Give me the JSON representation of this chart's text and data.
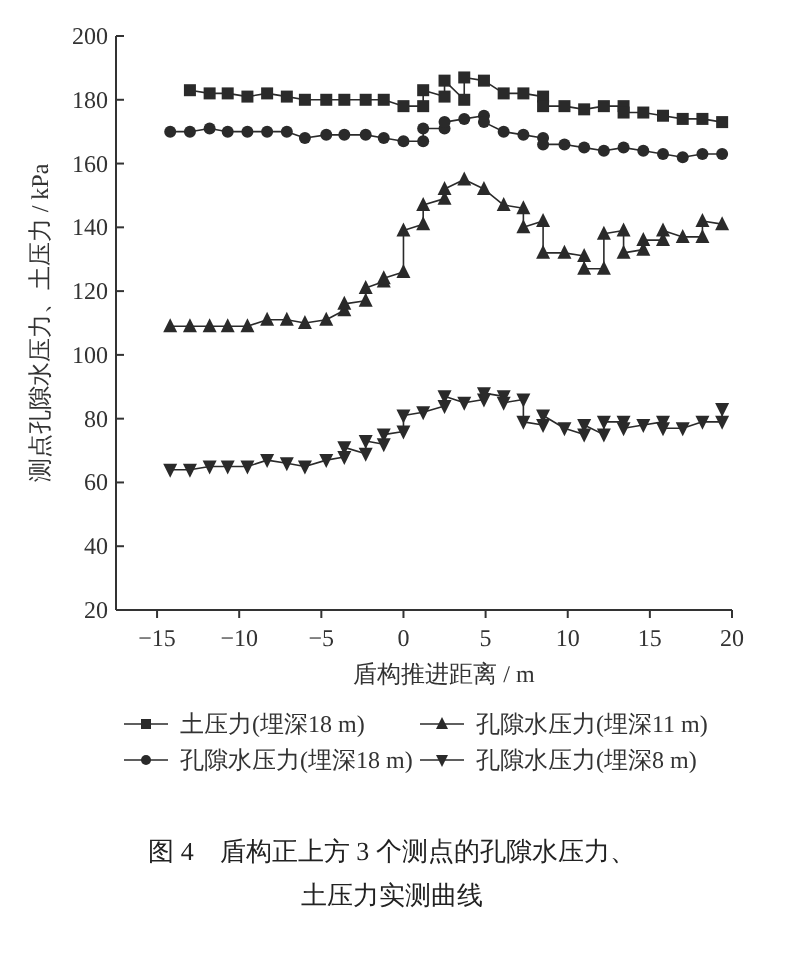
{
  "chart_data": {
    "type": "line",
    "xlabel": "盾构推进距离 / m",
    "ylabel": "测点孔隙水压力、土压力 / kPa",
    "annotations": [
      "图 4　盾构正上方 3 个测点的孔隙水压力、土压力实测曲线"
    ],
    "xlim": [
      -17.5,
      20
    ],
    "ylim": [
      20,
      200
    ],
    "xticks": [
      -15,
      -10,
      -5,
      0,
      5,
      10,
      15,
      20
    ],
    "yticks": [
      20,
      40,
      60,
      80,
      100,
      120,
      140,
      160,
      180,
      200
    ],
    "grid": false,
    "legend": "bottom",
    "line_style": "solid",
    "series": [
      {
        "name": "土压力(埋深18 m)",
        "color": "#2a2a2a",
        "marker": "square",
        "x": [
          -13,
          -11.8,
          -10.7,
          -9.5,
          -8.3,
          -7.1,
          -6,
          -4.7,
          -3.6,
          -2.3,
          -1.2,
          0,
          1.2,
          1.2,
          2.5,
          2.5,
          3.7,
          3.7,
          4.9,
          6.1,
          7.3,
          8.5,
          8.5,
          9.8,
          11,
          12.2,
          13.4,
          13.4,
          14.6,
          15.8,
          17,
          18.2,
          19.4
        ],
        "values": [
          183,
          182,
          182,
          181,
          182,
          181,
          180,
          180,
          180,
          180,
          180,
          178,
          178,
          183,
          181,
          186,
          180,
          187,
          186,
          182,
          182,
          181,
          178,
          178,
          177,
          178,
          178,
          176,
          176,
          175,
          174,
          174,
          173
        ]
      },
      {
        "name": "孔隙水压力(埋深11 m)",
        "color": "#2a2a2a",
        "marker": "triangle",
        "x": [
          -14.2,
          -13,
          -11.8,
          -10.7,
          -9.5,
          -8.3,
          -7.1,
          -6,
          -4.7,
          -3.6,
          -3.6,
          -2.3,
          -2.3,
          -1.2,
          -1.2,
          0,
          0,
          1.2,
          1.2,
          2.5,
          2.5,
          3.7,
          4.9,
          6.1,
          7.3,
          7.3,
          8.5,
          8.5,
          9.8,
          11,
          11,
          12.2,
          12.2,
          13.4,
          13.4,
          14.6,
          14.6,
          15.8,
          15.8,
          17,
          18.2,
          18.2,
          19.4
        ],
        "values": [
          109,
          109,
          109,
          109,
          109,
          111,
          111,
          110,
          111,
          114,
          116,
          117,
          121,
          123,
          124,
          126,
          139,
          141,
          147,
          149,
          152,
          155,
          152,
          147,
          146,
          140,
          142,
          132,
          132,
          131,
          127,
          127,
          138,
          139,
          132,
          133,
          136,
          136,
          139,
          137,
          137,
          142,
          141
        ]
      },
      {
        "name": "孔隙水压力(埋深18 m)",
        "color": "#2a2a2a",
        "marker": "circle",
        "x": [
          -14.2,
          -13,
          -11.8,
          -10.7,
          -9.5,
          -8.3,
          -7.1,
          -6,
          -4.7,
          -3.6,
          -2.3,
          -1.2,
          0,
          1.2,
          1.2,
          2.5,
          2.5,
          3.7,
          4.9,
          4.9,
          6.1,
          7.3,
          8.5,
          8.5,
          9.8,
          11,
          12.2,
          13.4,
          14.6,
          15.8,
          17,
          18.2,
          19.4
        ],
        "values": [
          170,
          170,
          171,
          170,
          170,
          170,
          170,
          168,
          169,
          169,
          169,
          168,
          167,
          167,
          171,
          171,
          173,
          174,
          175,
          173,
          170,
          169,
          168,
          166,
          166,
          165,
          164,
          165,
          164,
          163,
          162,
          163,
          163
        ]
      },
      {
        "name": "孔隙水压力(埋深8 m)",
        "color": "#2a2a2a",
        "marker": "triangle-down",
        "x": [
          -14.2,
          -13,
          -11.8,
          -10.7,
          -9.5,
          -8.3,
          -7.1,
          -6,
          -4.7,
          -3.6,
          -3.6,
          -2.3,
          -2.3,
          -1.2,
          -1.2,
          0,
          0,
          1.2,
          2.5,
          2.5,
          3.7,
          4.9,
          4.9,
          6.1,
          6.1,
          7.3,
          7.3,
          8.5,
          8.5,
          9.8,
          11,
          11,
          12.2,
          12.2,
          13.4,
          13.4,
          14.6,
          15.8,
          15.8,
          17,
          18.2,
          19.4,
          19.4
        ],
        "values": [
          64,
          64,
          65,
          65,
          65,
          67,
          66,
          65,
          67,
          68,
          71,
          69,
          73,
          72,
          75,
          76,
          81,
          82,
          84,
          87,
          85,
          86,
          88,
          87,
          85,
          86,
          79,
          78,
          81,
          77,
          75,
          78,
          75,
          79,
          79,
          77,
          78,
          79,
          77,
          77,
          79,
          79,
          83
        ]
      }
    ]
  }
}
